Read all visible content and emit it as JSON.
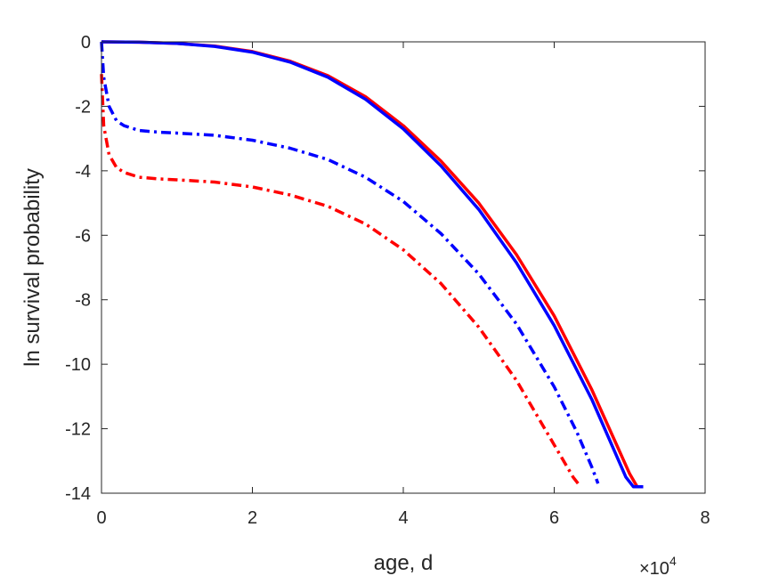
{
  "chart_data": {
    "type": "line",
    "xlabel": "age, d",
    "ylabel": "ln survival probability",
    "xlim": [
      0,
      80000
    ],
    "ylim": [
      -14,
      0
    ],
    "x_ticks": [
      0,
      20000,
      40000,
      60000,
      80000
    ],
    "x_tick_labels": [
      "0",
      "2",
      "4",
      "6",
      "8"
    ],
    "x_exponent_label": {
      "base": "×10",
      "power": "4"
    },
    "y_ticks": [
      0,
      -2,
      -4,
      -6,
      -8,
      -10,
      -12,
      -14
    ],
    "y_tick_labels": [
      "0",
      "-2",
      "-4",
      "-6",
      "-8",
      "-10",
      "-12",
      "-14"
    ],
    "grid": false,
    "series": [
      {
        "color": "#ff0000",
        "style": "solid",
        "x": [
          0,
          5000,
          10000,
          15000,
          20000,
          25000,
          30000,
          35000,
          40000,
          45000,
          50000,
          55000,
          60000,
          65000,
          70000,
          71000,
          71800
        ],
        "y": [
          0,
          -0.01,
          -0.05,
          -0.13,
          -0.3,
          -0.6,
          -1.05,
          -1.7,
          -2.6,
          -3.7,
          -5.0,
          -6.6,
          -8.5,
          -10.8,
          -13.4,
          -13.8,
          -13.8
        ]
      },
      {
        "color": "#0000ff",
        "style": "solid",
        "x": [
          0,
          5000,
          10000,
          15000,
          20000,
          25000,
          30000,
          35000,
          40000,
          45000,
          50000,
          55000,
          60000,
          65000,
          69500,
          70500,
          71800
        ],
        "y": [
          0,
          -0.01,
          -0.05,
          -0.14,
          -0.32,
          -0.63,
          -1.1,
          -1.78,
          -2.7,
          -3.85,
          -5.2,
          -6.85,
          -8.8,
          -11.1,
          -13.5,
          -13.8,
          -13.8
        ]
      },
      {
        "color": "#0000ff",
        "style": "dashdot",
        "x": [
          0,
          300,
          1000,
          2000,
          3000,
          5000,
          7500,
          10000,
          15000,
          20000,
          25000,
          30000,
          35000,
          40000,
          45000,
          50000,
          55000,
          60000,
          63000,
          65000,
          65800
        ],
        "y": [
          0,
          -1.1,
          -2.0,
          -2.45,
          -2.6,
          -2.75,
          -2.8,
          -2.83,
          -2.9,
          -3.05,
          -3.3,
          -3.65,
          -4.2,
          -4.95,
          -5.95,
          -7.2,
          -8.75,
          -10.7,
          -12.1,
          -13.2,
          -13.7
        ]
      },
      {
        "color": "#ff0000",
        "style": "dashdot",
        "x": [
          0,
          300,
          1000,
          2000,
          3000,
          5000,
          7500,
          10000,
          15000,
          20000,
          25000,
          30000,
          35000,
          40000,
          45000,
          50000,
          55000,
          60000,
          62500,
          63500
        ],
        "y": [
          -1.0,
          -2.6,
          -3.5,
          -3.9,
          -4.05,
          -4.2,
          -4.25,
          -4.28,
          -4.35,
          -4.5,
          -4.75,
          -5.1,
          -5.65,
          -6.45,
          -7.5,
          -8.85,
          -10.5,
          -12.5,
          -13.5,
          -13.8
        ]
      }
    ]
  }
}
